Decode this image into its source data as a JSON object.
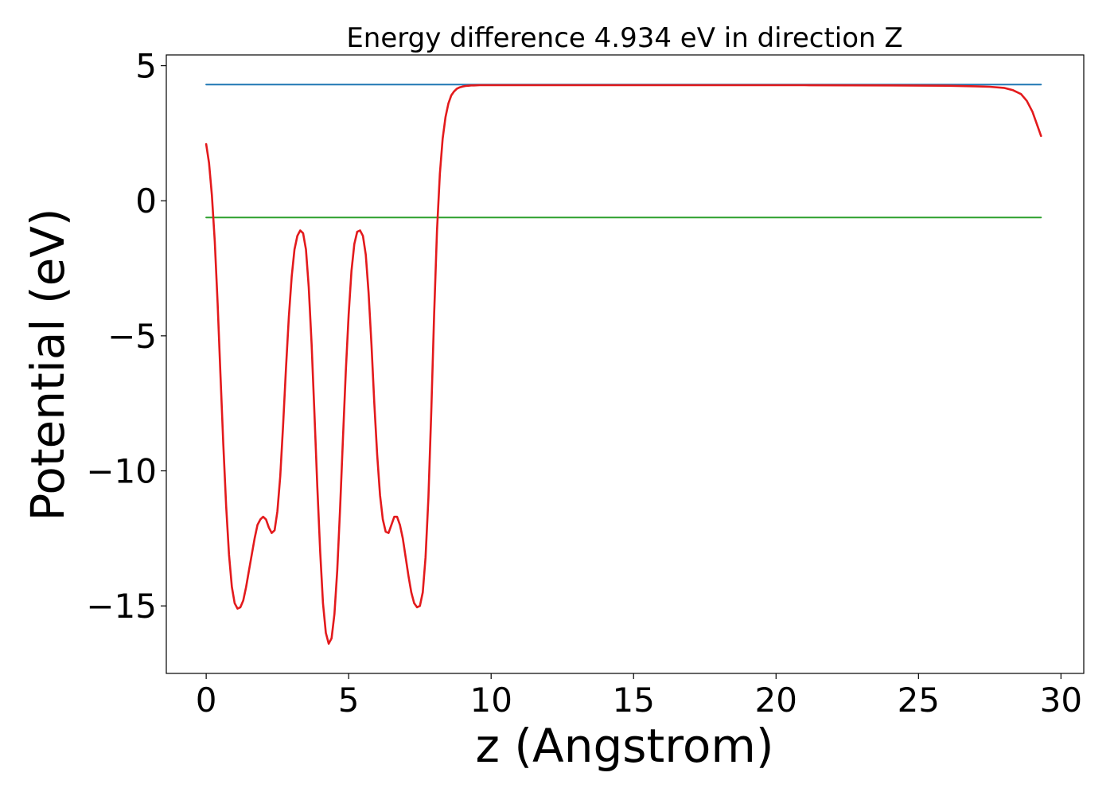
{
  "chart_data": {
    "type": "line",
    "title": "Energy difference 4.934 eV in direction Z",
    "xlabel": "z (Angstrom)",
    "ylabel": "Potential (eV)",
    "xlim": [
      -1.4,
      30.8
    ],
    "ylim": [
      -17.5,
      5.4
    ],
    "xticks": [
      0,
      5,
      10,
      15,
      20,
      25,
      30
    ],
    "xtick_labels": [
      "0",
      "5",
      "10",
      "15",
      "20",
      "25",
      "30"
    ],
    "yticks": [
      5,
      0,
      -5,
      -10,
      -15
    ],
    "ytick_labels": [
      "5",
      "0",
      "−5",
      "−10",
      "−15"
    ],
    "grid": false,
    "series": [
      {
        "color": "#1f77b4",
        "style": "horizontal",
        "x": [
          0,
          29.3
        ],
        "y": [
          4.3,
          4.3
        ]
      },
      {
        "color": "#2ca02c",
        "style": "horizontal",
        "x": [
          0,
          29.3
        ],
        "y": [
          -0.62,
          -0.62
        ]
      },
      {
        "color": "#e31a1c",
        "style": "curve",
        "x": [
          0,
          0.1,
          0.2,
          0.3,
          0.4,
          0.5,
          0.6,
          0.7,
          0.8,
          0.9,
          1.0,
          1.1,
          1.2,
          1.3,
          1.4,
          1.5,
          1.6,
          1.7,
          1.8,
          1.9,
          2.0,
          2.1,
          2.2,
          2.3,
          2.4,
          2.5,
          2.6,
          2.7,
          2.8,
          2.9,
          3.0,
          3.1,
          3.2,
          3.3,
          3.4,
          3.5,
          3.6,
          3.7,
          3.8,
          3.9,
          4.0,
          4.1,
          4.2,
          4.3,
          4.4,
          4.5,
          4.6,
          4.7,
          4.8,
          4.9,
          5.0,
          5.1,
          5.2,
          5.3,
          5.4,
          5.5,
          5.6,
          5.7,
          5.8,
          5.9,
          6.0,
          6.1,
          6.2,
          6.3,
          6.4,
          6.5,
          6.6,
          6.7,
          6.8,
          6.9,
          7.0,
          7.1,
          7.2,
          7.3,
          7.4,
          7.5,
          7.6,
          7.7,
          7.8,
          7.9,
          8.0,
          8.1,
          8.2,
          8.3,
          8.4,
          8.5,
          8.6,
          8.7,
          8.8,
          8.9,
          9.0,
          9.1,
          9.2,
          9.3,
          9.4,
          9.6,
          9.8,
          10.0,
          10.2,
          10.5,
          11.0,
          11.5,
          12.0,
          13.0,
          15.0,
          18.0,
          21.0,
          24.0,
          26.0,
          27.0,
          27.5,
          28.0,
          28.3,
          28.6,
          28.8,
          29.0,
          29.1,
          29.2,
          29.3
        ],
        "y": [
          2.1,
          1.4,
          0.2,
          -1.5,
          -3.8,
          -6.4,
          -9.0,
          -11.3,
          -13.1,
          -14.3,
          -14.9,
          -15.1,
          -15.05,
          -14.8,
          -14.3,
          -13.7,
          -13.1,
          -12.5,
          -12.0,
          -11.8,
          -11.7,
          -11.8,
          -12.1,
          -12.3,
          -12.2,
          -11.5,
          -10.2,
          -8.3,
          -6.2,
          -4.3,
          -2.8,
          -1.8,
          -1.3,
          -1.1,
          -1.2,
          -1.8,
          -3.2,
          -5.3,
          -7.9,
          -10.6,
          -13.0,
          -14.9,
          -16.0,
          -16.4,
          -16.2,
          -15.3,
          -13.7,
          -11.4,
          -8.8,
          -6.3,
          -4.2,
          -2.6,
          -1.6,
          -1.15,
          -1.1,
          -1.3,
          -2.0,
          -3.4,
          -5.3,
          -7.5,
          -9.4,
          -10.9,
          -11.8,
          -12.25,
          -12.3,
          -12.0,
          -11.7,
          -11.7,
          -12.0,
          -12.5,
          -13.2,
          -13.9,
          -14.5,
          -14.9,
          -15.05,
          -15.0,
          -14.5,
          -13.2,
          -11.0,
          -7.8,
          -4.2,
          -1.1,
          1.0,
          2.3,
          3.1,
          3.6,
          3.9,
          4.05,
          4.15,
          4.2,
          4.23,
          4.25,
          4.26,
          4.27,
          4.27,
          4.28,
          4.28,
          4.28,
          4.28,
          4.28,
          4.28,
          4.28,
          4.28,
          4.28,
          4.28,
          4.28,
          4.28,
          4.27,
          4.26,
          4.24,
          4.22,
          4.18,
          4.1,
          3.95,
          3.7,
          3.3,
          3.0,
          2.7,
          2.4
        ]
      }
    ]
  }
}
